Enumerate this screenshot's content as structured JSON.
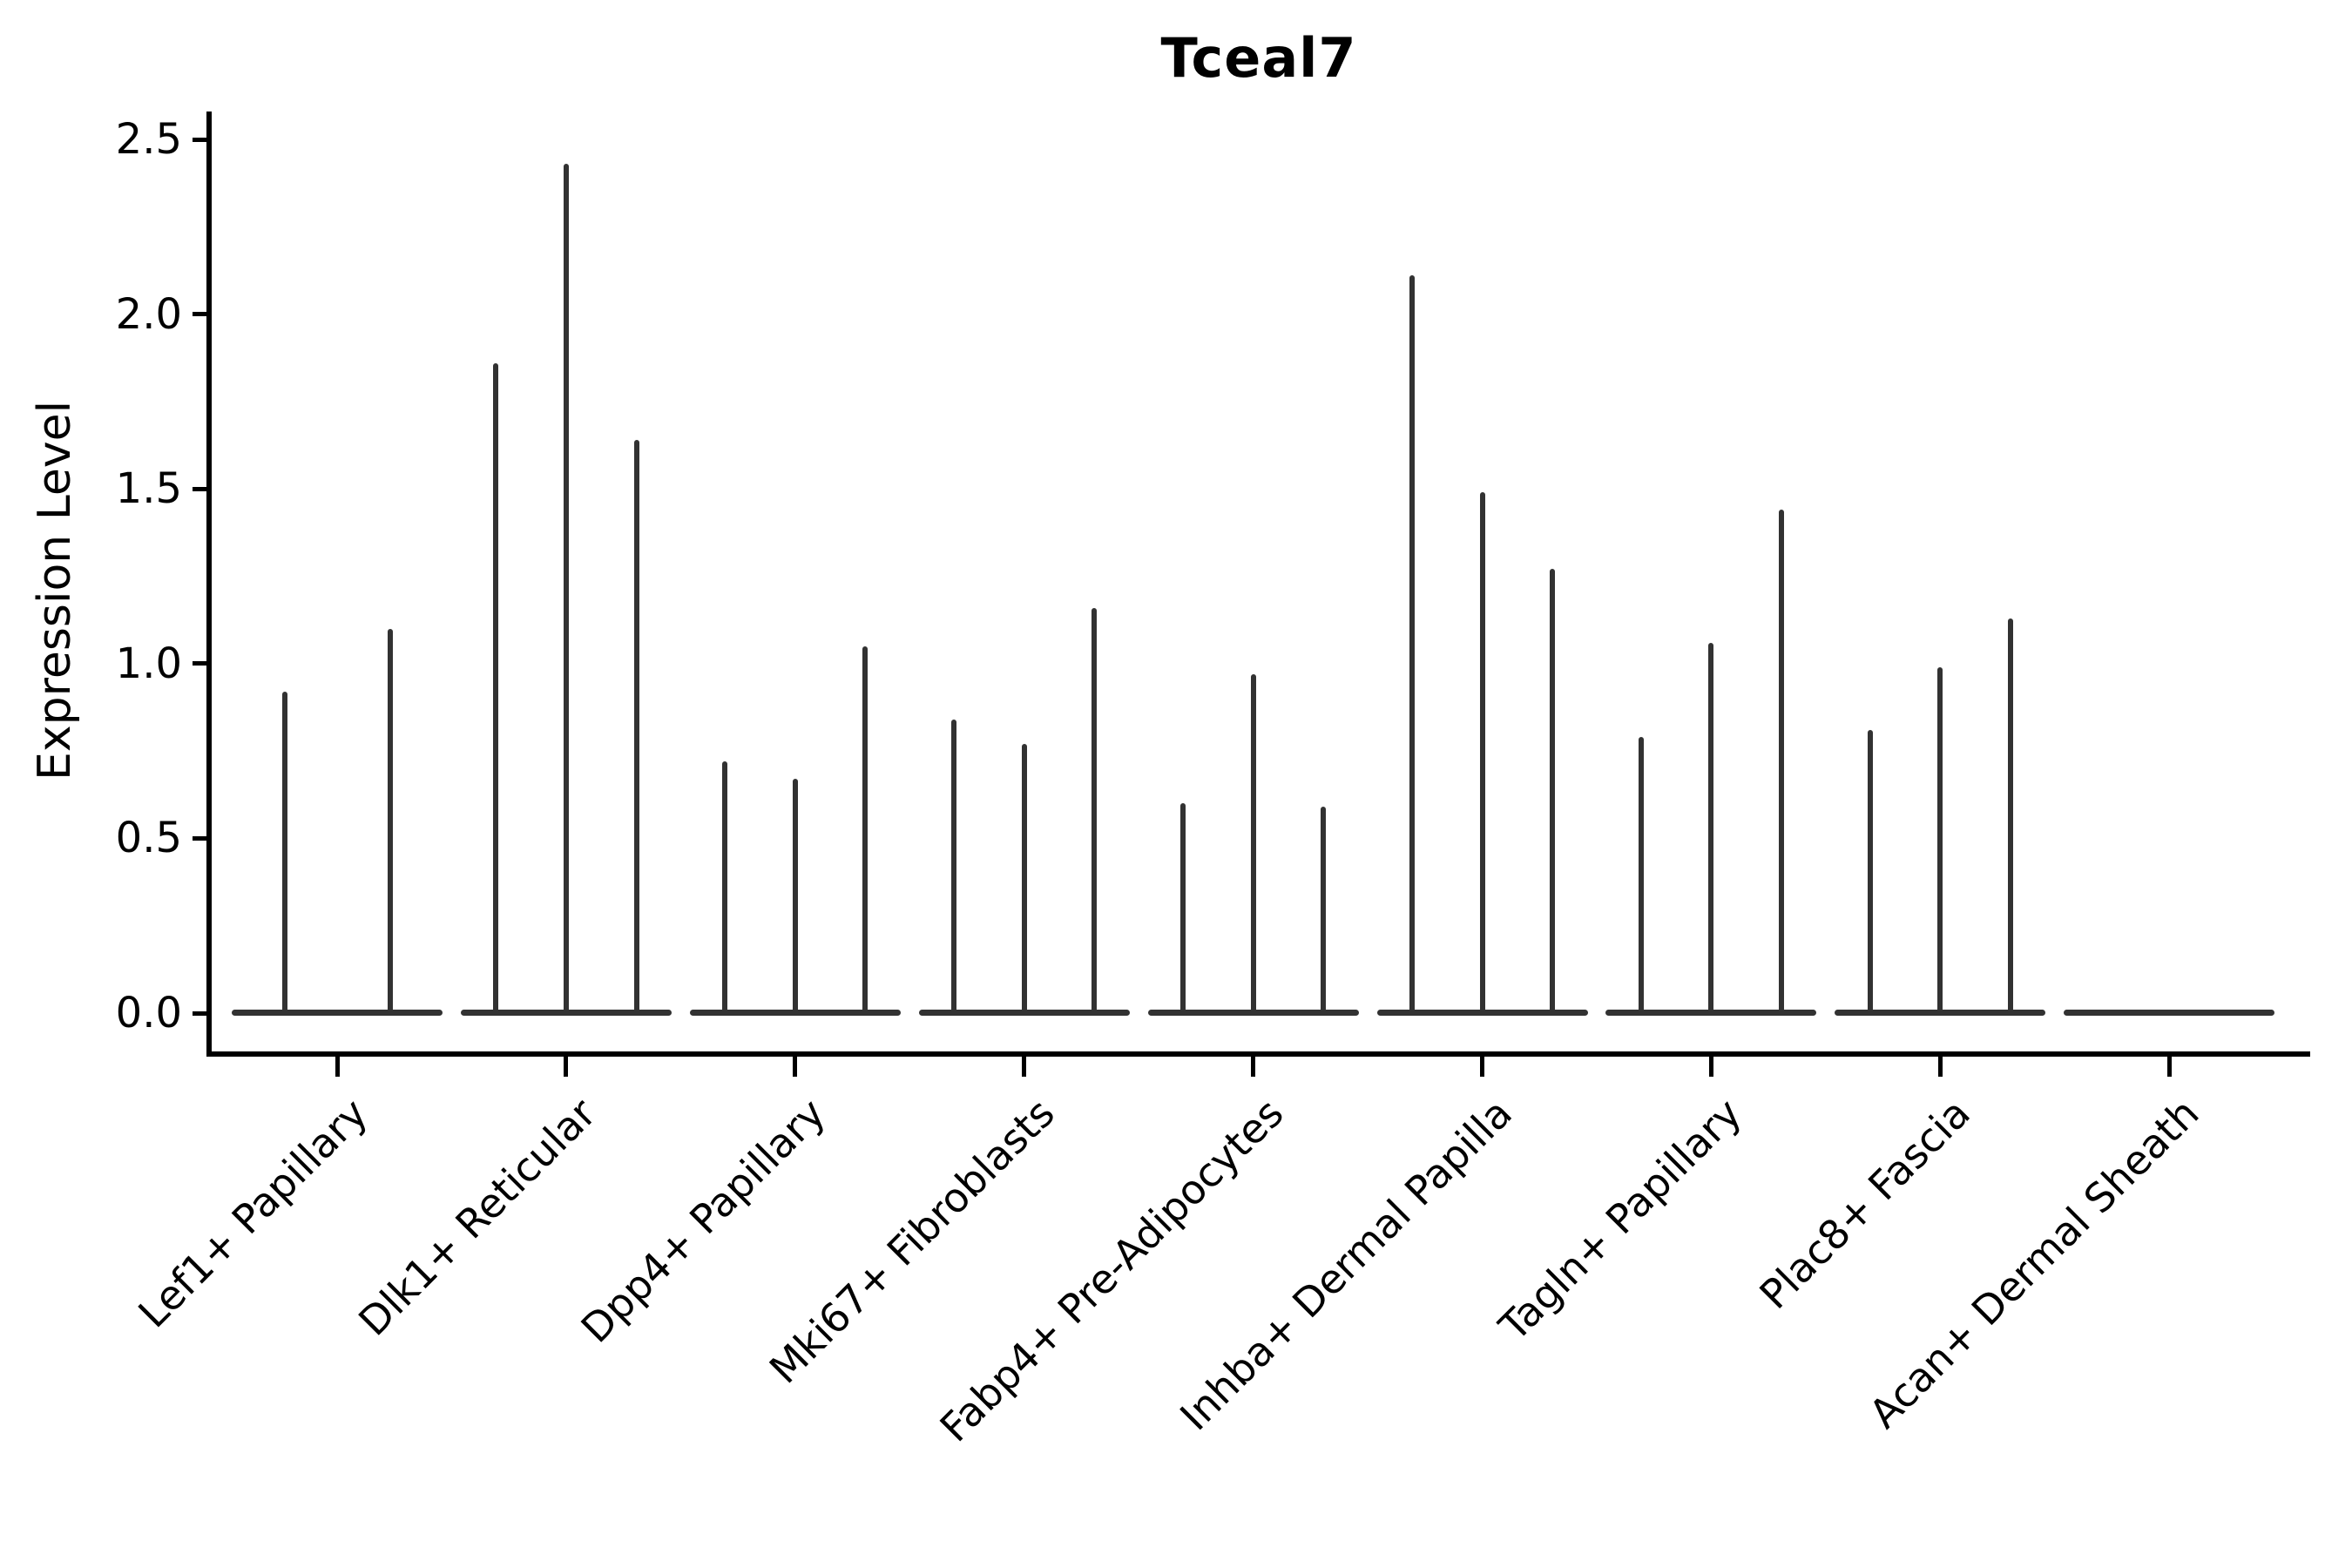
{
  "title": "Tceal7",
  "axes": {
    "ylabel": "Expression Level",
    "ytick_labels": [
      "0.0",
      "0.5",
      "1.0",
      "1.5",
      "2.0",
      "2.5"
    ]
  },
  "chart_data": {
    "type": "violin",
    "title": "Tceal7",
    "xlabel": "",
    "ylabel": "Expression Level",
    "ylim": [
      0.0,
      2.5
    ],
    "yticks": [
      0.0,
      0.5,
      1.0,
      1.5,
      2.0,
      2.5
    ],
    "grid": false,
    "legend": "none",
    "style_note": "needle-thin violins: all density at 0 (flat base line per category) with narrow spikes rising to each violin's maximum expression",
    "categories": [
      "Lef1+ Papillary",
      "Dlk1+ Reticular",
      "Dpp4+ Papillary",
      "Mki67+ Fibroblasts",
      "Fabp4+ Pre-Adipocytes",
      "Inhba+ Dermal Papilla",
      "Tagln+ Papillary",
      "Plac8+ Fascia",
      "Acan+ Dermal Sheath"
    ],
    "violins_per_category": [
      2,
      3,
      3,
      3,
      3,
      3,
      3,
      3,
      0
    ],
    "spike_max_values": [
      [
        0.92,
        1.1
      ],
      [
        1.86,
        2.43,
        1.64
      ],
      [
        0.72,
        0.67,
        1.05
      ],
      [
        0.84,
        0.77,
        1.16
      ],
      [
        0.6,
        0.97,
        0.59
      ],
      [
        2.11,
        1.49,
        1.27
      ],
      [
        0.79,
        1.06,
        1.44
      ],
      [
        0.81,
        0.99,
        1.13
      ],
      []
    ],
    "colors": {
      "violin": "#323232",
      "axis": "#000000",
      "background": "#ffffff"
    }
  }
}
